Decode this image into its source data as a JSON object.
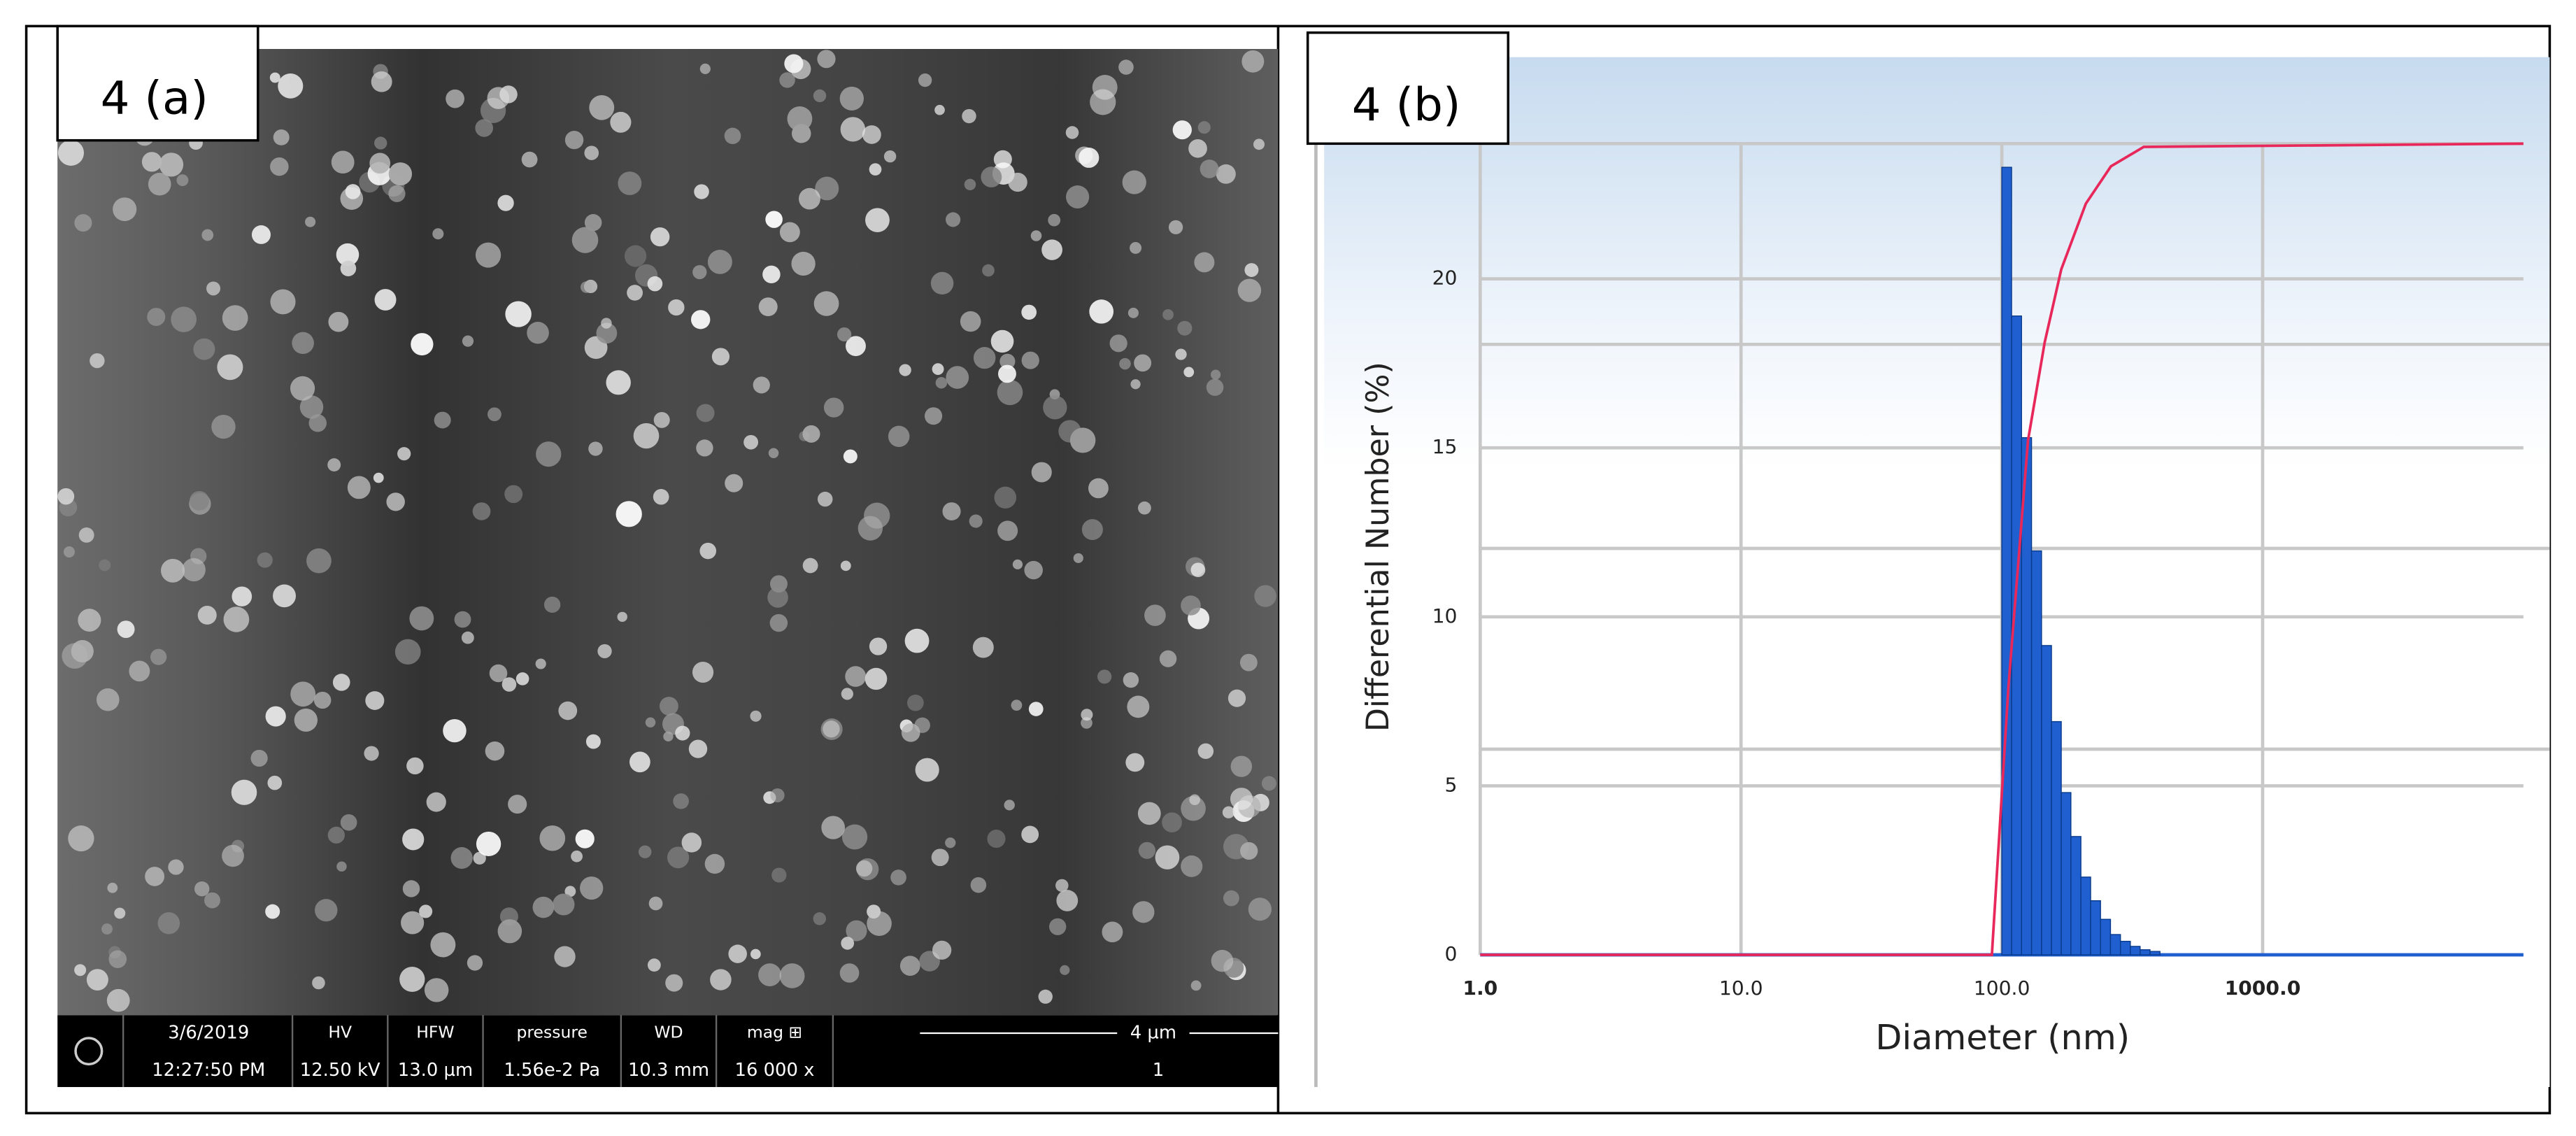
{
  "panel_a": {
    "label": "4 (a)",
    "info_bar": {
      "date": "3/6/2019",
      "time": "12:27:50 PM",
      "cells": [
        {
          "label": "HV",
          "value": "12.50 kV"
        },
        {
          "label": "HFW",
          "value": "13.0 µm"
        },
        {
          "label": "pressure",
          "value": "1.56e-2 Pa"
        },
        {
          "label": "WD",
          "value": "10.3 mm"
        },
        {
          "label": "mag ⊞",
          "value": "16 000 x"
        }
      ],
      "scale_bar": "4 µm",
      "frame": "1"
    }
  },
  "chart_data": {
    "type": "histogram",
    "panel_label": "4 (b)",
    "xlabel": "Diameter (nm)",
    "ylabel": "Differential Number (%)",
    "x_scale": "log",
    "grid": true,
    "color": "#1f5fd0",
    "bins": [
      100,
      109,
      119,
      130,
      142,
      155,
      169,
      184,
      201,
      219,
      239,
      261,
      285,
      311,
      339,
      370,
      404
    ],
    "values": [
      23.3,
      18.9,
      15.3,
      11.95,
      9.15,
      6.9,
      4.8,
      3.5,
      2.3,
      1.6,
      1.05,
      0.6,
      0.4,
      0.25,
      0.15,
      0.1
    ],
    "xlim": [
      1,
      10000
    ],
    "xticks": [
      {
        "value": 1,
        "label": "1.0"
      },
      {
        "value": 10,
        "label": "10.0"
      },
      {
        "value": 100,
        "label": "100.0"
      },
      {
        "value": 1000,
        "label": "1000.0"
      }
    ],
    "ylim": [
      0,
      24
    ],
    "yticks": [
      0,
      5,
      10,
      15,
      20
    ],
    "y2lim": [
      0,
      100
    ],
    "cumulative_line": {
      "type": "line",
      "axis": "y2",
      "color": "#e8285a",
      "x": [
        1,
        91.6,
        106,
        126,
        146,
        169,
        210,
        262,
        350,
        10000
      ],
      "values": [
        0,
        0,
        33,
        63.4,
        75.5,
        84.5,
        92.6,
        97.2,
        99.6,
        100
      ]
    }
  }
}
